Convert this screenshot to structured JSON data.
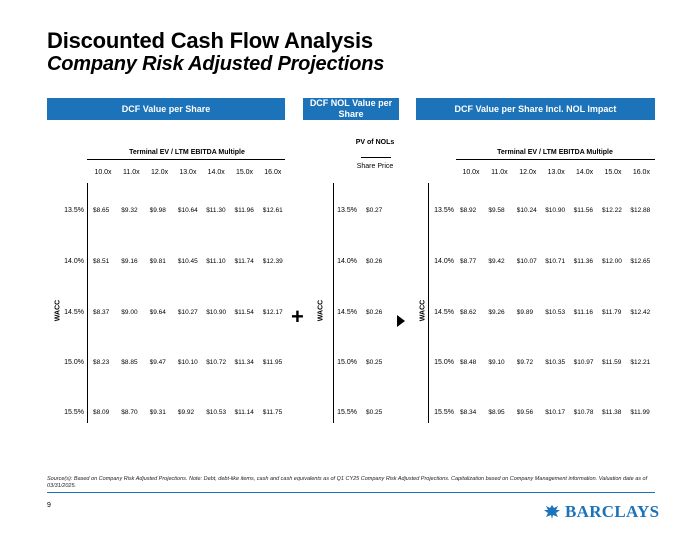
{
  "title": "Discounted Cash Flow Analysis",
  "subtitle": "Company Risk Adjusted Projections",
  "left": {
    "banner": "DCF Value per Share",
    "multiple_title": "Terminal EV / LTM EBITDA Multiple",
    "columns": [
      "10.0x",
      "11.0x",
      "12.0x",
      "13.0x",
      "14.0x",
      "15.0x",
      "16.0x"
    ],
    "axis_label": "WACC",
    "rows": [
      {
        "wacc": "13.5%",
        "values": [
          "$8.65",
          "$9.32",
          "$9.98",
          "$10.64",
          "$11.30",
          "$11.96",
          "$12.61"
        ]
      },
      {
        "wacc": "14.0%",
        "values": [
          "$8.51",
          "$9.16",
          "$9.81",
          "$10.45",
          "$11.10",
          "$11.74",
          "$12.39"
        ]
      },
      {
        "wacc": "14.5%",
        "values": [
          "$8.37",
          "$9.00",
          "$9.64",
          "$10.27",
          "$10.90",
          "$11.54",
          "$12.17"
        ]
      },
      {
        "wacc": "15.0%",
        "values": [
          "$8.23",
          "$8.85",
          "$9.47",
          "$10.10",
          "$10.72",
          "$11.34",
          "$11.95"
        ]
      },
      {
        "wacc": "15.5%",
        "values": [
          "$8.09",
          "$8.70",
          "$9.31",
          "$9.92",
          "$10.53",
          "$11.14",
          "$11.75"
        ]
      }
    ]
  },
  "mid": {
    "banner": "DCF NOL Value per Share",
    "pv_header": "PV of NOLs",
    "col_header": "Share Price",
    "axis_label": "WACC",
    "rows": [
      {
        "wacc": "13.5%",
        "value": "$0.27"
      },
      {
        "wacc": "14.0%",
        "value": "$0.26"
      },
      {
        "wacc": "14.5%",
        "value": "$0.26"
      },
      {
        "wacc": "15.0%",
        "value": "$0.25"
      },
      {
        "wacc": "15.5%",
        "value": "$0.25"
      }
    ]
  },
  "right": {
    "banner": "DCF Value per Share Incl. NOL Impact",
    "multiple_title": "Terminal EV / LTM EBITDA Multiple",
    "columns": [
      "10.0x",
      "11.0x",
      "12.0x",
      "13.0x",
      "14.0x",
      "15.0x",
      "16.0x"
    ],
    "axis_label": "WACC",
    "rows": [
      {
        "wacc": "13.5%",
        "values": [
          "$8.92",
          "$9.58",
          "$10.24",
          "$10.90",
          "$11.56",
          "$12.22",
          "$12.88"
        ]
      },
      {
        "wacc": "14.0%",
        "values": [
          "$8.77",
          "$9.42",
          "$10.07",
          "$10.71",
          "$11.36",
          "$12.00",
          "$12.65"
        ]
      },
      {
        "wacc": "14.5%",
        "values": [
          "$8.62",
          "$9.26",
          "$9.89",
          "$10.53",
          "$11.16",
          "$11.79",
          "$12.42"
        ]
      },
      {
        "wacc": "15.0%",
        "values": [
          "$8.48",
          "$9.10",
          "$9.72",
          "$10.35",
          "$10.97",
          "$11.59",
          "$12.21"
        ]
      },
      {
        "wacc": "15.5%",
        "values": [
          "$8.34",
          "$8.95",
          "$9.56",
          "$10.17",
          "$10.78",
          "$11.38",
          "$11.99"
        ]
      }
    ]
  },
  "plus_symbol": "+",
  "source": "Source(s): Based on Company Risk Adjusted Projections. Note: Debt, debt-like items, cash and cash equivalents as of Q1 CY25 Company Risk Adjusted Projections. Capitalization based on Company Management information. Valuation date as of 03/31/2025.",
  "page_number": "9",
  "logo_text": "BARCLAYS",
  "colors": {
    "brand_blue": "#1c73b9"
  }
}
